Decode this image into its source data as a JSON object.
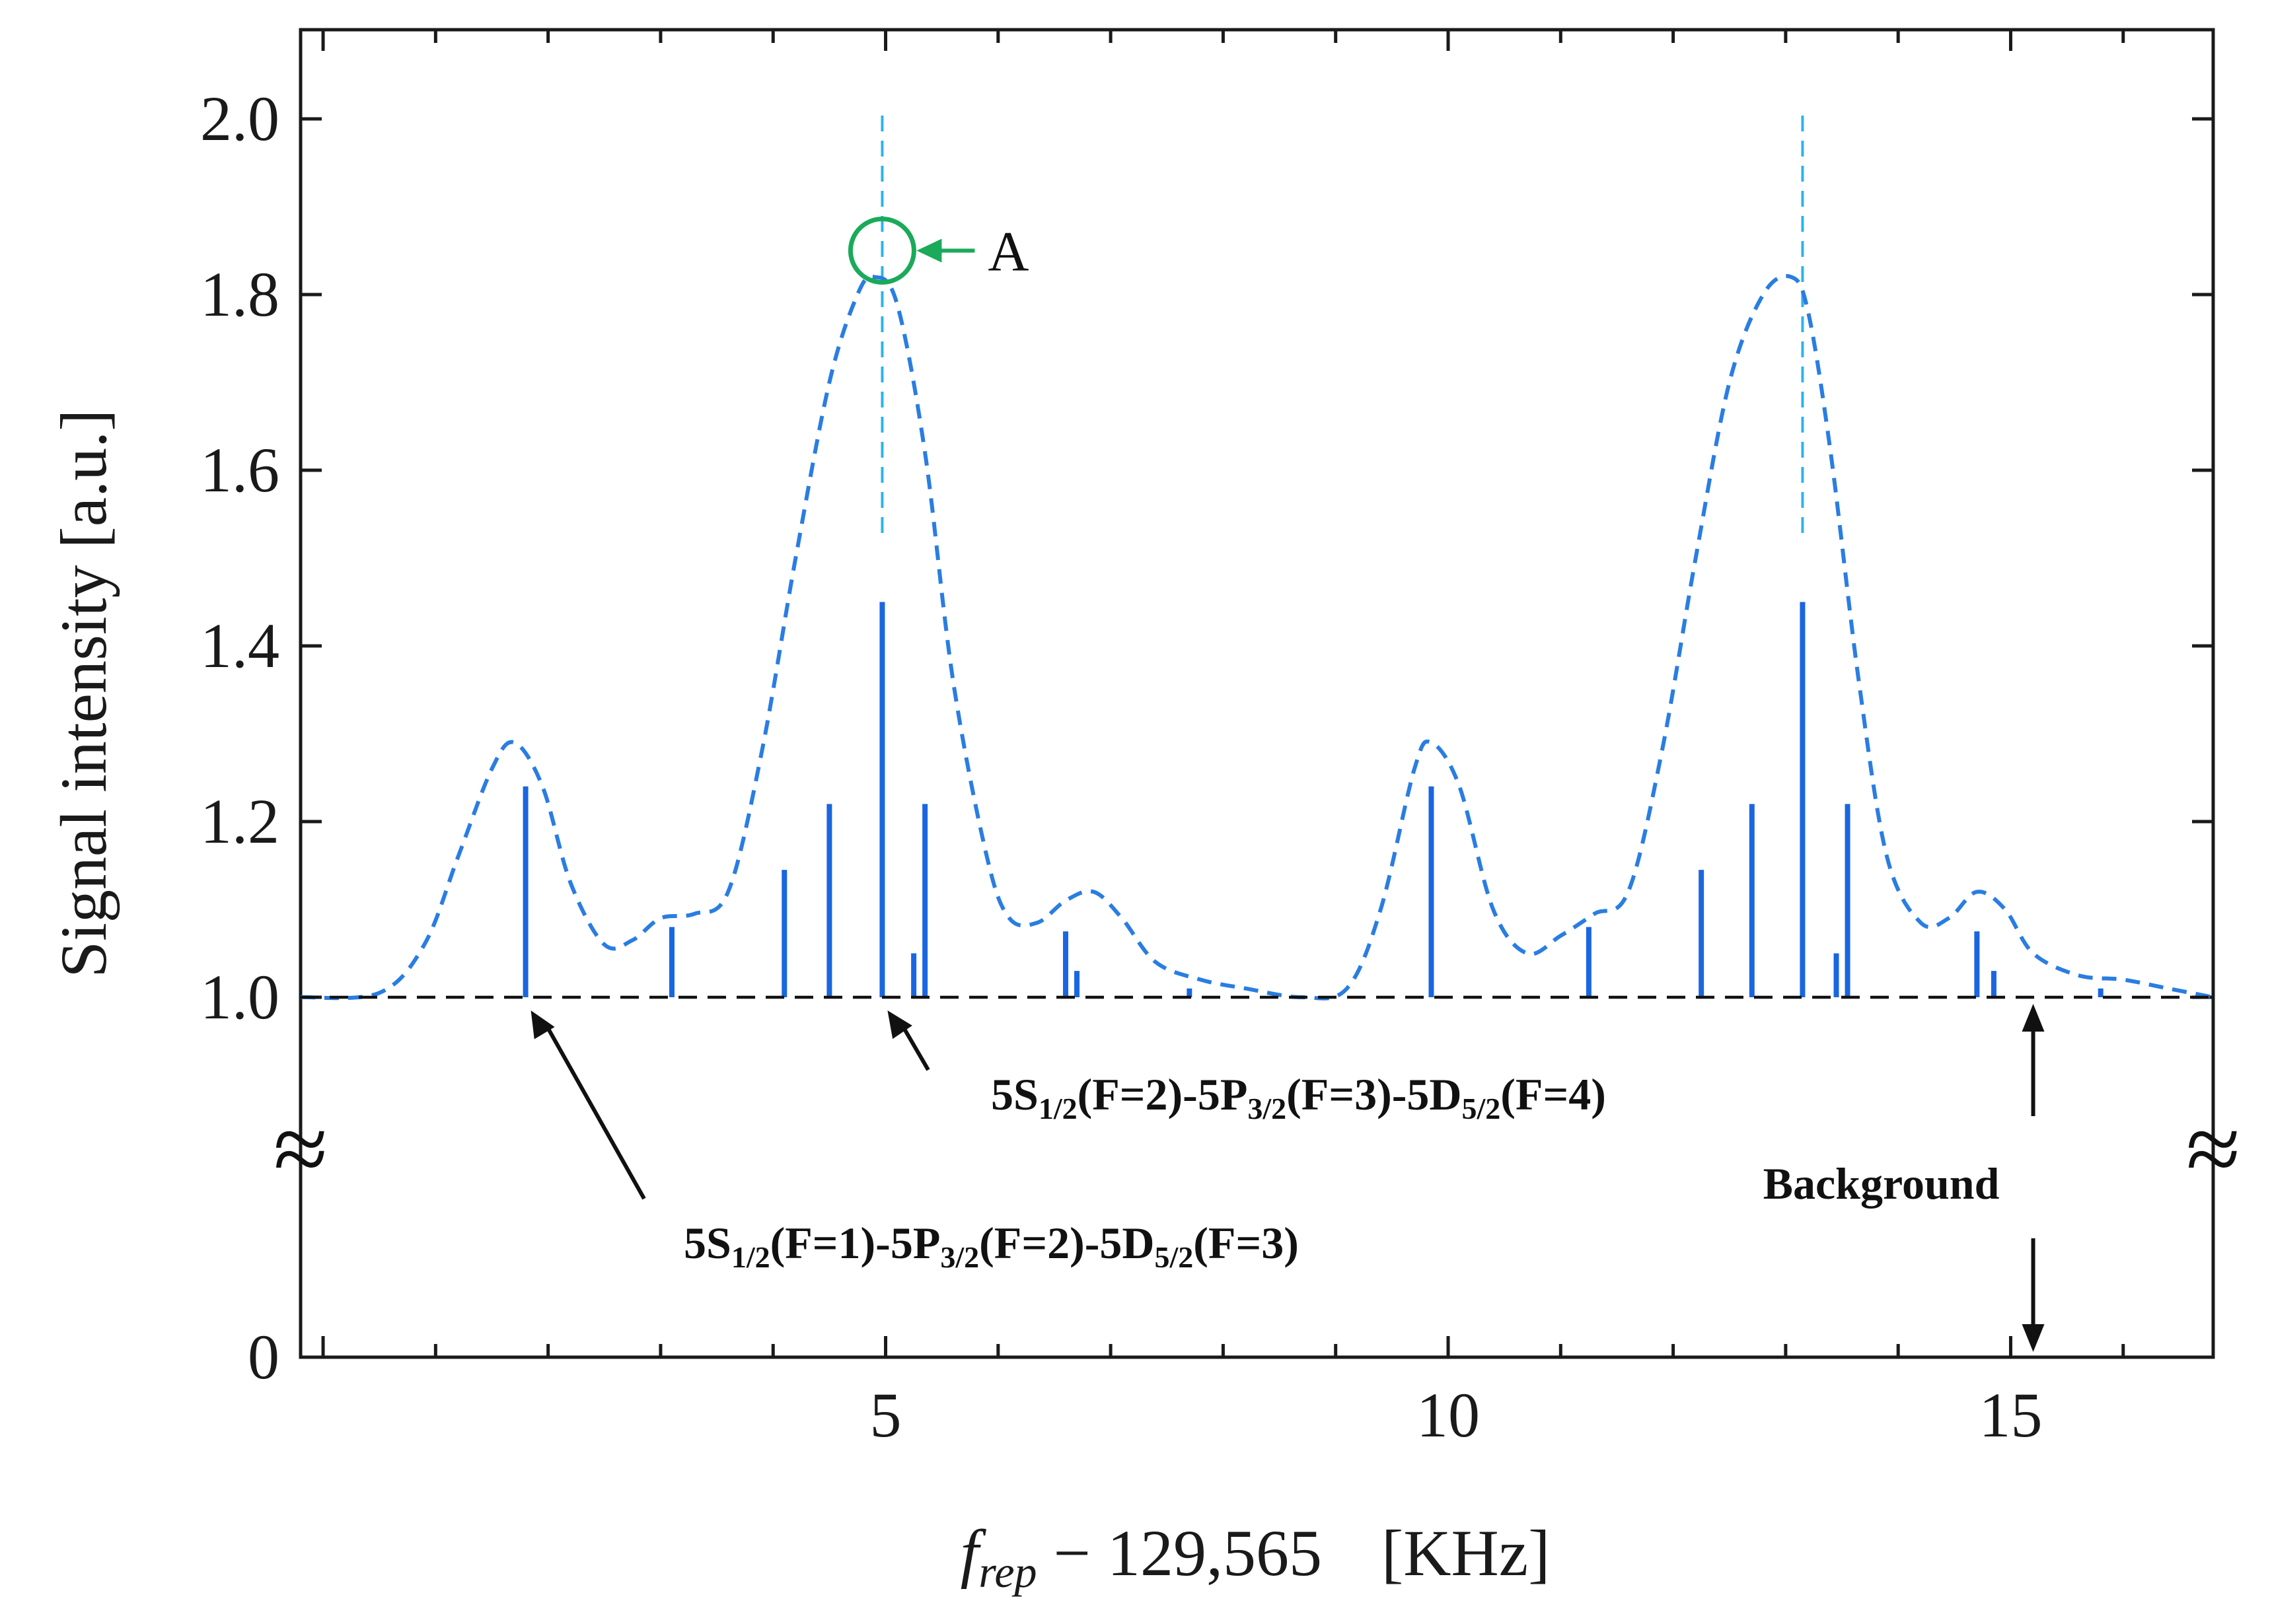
{
  "chart_data": {
    "type": "line",
    "title": "",
    "xlabel_var": "f",
    "xlabel_sub": "rep",
    "xlabel_rest": " − 129,565",
    "xlabel_unit": "[KHz]",
    "ylabel": "Signal intensity  [a.u.]",
    "xlim": [
      -0.2,
      16.8
    ],
    "ylim_upper": [
      1.0,
      2.1
    ],
    "ylim_lower": [
      0,
      1.0
    ],
    "x_ticks": [
      5,
      10,
      15
    ],
    "x_tick_labels": [
      "5",
      "10",
      "15"
    ],
    "y_ticks": [
      1.0,
      1.2,
      1.4,
      1.6,
      1.8,
      2.0
    ],
    "y_tick_labels": [
      "1.0",
      "1.2",
      "1.4",
      "1.6",
      "1.8",
      "2.0"
    ],
    "y_zero_label": "0",
    "baseline": 1.0,
    "series": [
      {
        "name": "calculated spectrum (dashed envelope)",
        "style": "dashed",
        "color": "#2a7de1",
        "x": [
          -0.2,
          0.5,
          0.9,
          1.2,
          1.5,
          1.7,
          1.95,
          2.2,
          2.5,
          2.75,
          3.0,
          3.3,
          3.6,
          3.9,
          4.2,
          4.5,
          4.75,
          4.9,
          5.1,
          5.35,
          5.6,
          5.9,
          6.1,
          6.35,
          6.6,
          6.85,
          7.1,
          7.4,
          7.8,
          8.2,
          8.7,
          9.1,
          9.4,
          9.7,
          9.85,
          10.1,
          10.4,
          10.7,
          11.0,
          11.3,
          11.6,
          11.9,
          12.2,
          12.5,
          12.8,
          13.05,
          13.2,
          13.4,
          13.65,
          13.9,
          14.2,
          14.45,
          14.7,
          14.95,
          15.2,
          15.6,
          16.0,
          16.4,
          16.8
        ],
        "y": [
          1.0,
          1.005,
          1.06,
          1.16,
          1.26,
          1.29,
          1.24,
          1.13,
          1.06,
          1.065,
          1.09,
          1.095,
          1.12,
          1.28,
          1.5,
          1.7,
          1.8,
          1.82,
          1.79,
          1.62,
          1.36,
          1.16,
          1.09,
          1.085,
          1.11,
          1.12,
          1.09,
          1.04,
          1.02,
          1.01,
          1.0,
          1.01,
          1.1,
          1.26,
          1.29,
          1.24,
          1.1,
          1.05,
          1.07,
          1.095,
          1.12,
          1.28,
          1.5,
          1.7,
          1.8,
          1.82,
          1.78,
          1.62,
          1.36,
          1.16,
          1.085,
          1.09,
          1.12,
          1.1,
          1.05,
          1.025,
          1.02,
          1.01,
          1.0
        ]
      },
      {
        "name": "transition lines (sticks)",
        "style": "stick",
        "color": "#1a66e0",
        "x": [
          1.8,
          3.1,
          4.1,
          4.5,
          4.97,
          5.25,
          5.35,
          6.6,
          6.7,
          7.7,
          9.85,
          11.25,
          12.25,
          12.7,
          13.15,
          13.45,
          13.55,
          14.7,
          14.85,
          15.8
        ],
        "y": [
          1.24,
          1.08,
          1.145,
          1.22,
          1.45,
          1.05,
          1.22,
          1.075,
          1.03,
          1.01,
          1.24,
          1.08,
          1.145,
          1.22,
          1.45,
          1.05,
          1.22,
          1.075,
          1.03,
          1.01
        ]
      }
    ],
    "peak_markers_x": [
      4.97,
      13.15
    ],
    "annotations": [
      {
        "id": "A",
        "text": "A",
        "x": 4.97,
        "y": 1.85
      },
      {
        "id": "t1",
        "main1": "5S",
        "sub1": "1/2",
        "main2": "(F=2)-5P",
        "sub2": "3/2",
        "main3": "(F=3)-5D",
        "sub3": "5/2",
        "main4": "(F=4)",
        "points_to_x": 4.97
      },
      {
        "id": "t2",
        "main1": "5S",
        "sub1": "1/2",
        "main2": "(F=1)-5P",
        "sub2": "3/2",
        "main3": "(F=2)-5D",
        "sub3": "5/2",
        "main4": "(F=3)",
        "points_to_x": 1.8
      },
      {
        "id": "bg",
        "text": "Background",
        "at_x": 15.2
      }
    ],
    "axis_break_symbol": "≈"
  }
}
